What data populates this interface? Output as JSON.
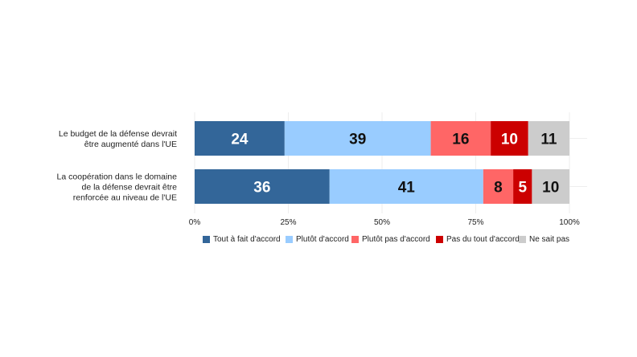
{
  "chart_data": {
    "type": "bar",
    "orientation": "horizontal",
    "stacked": true,
    "categories": [
      [
        "Le budget de la défense devrait",
        "être augmenté dans l'UE"
      ],
      [
        "La coopération dans le domaine",
        "de la défense devrait être",
        "renforcée au niveau de l'UE"
      ]
    ],
    "series": [
      {
        "name": "Tout à fait d'accord",
        "color": "#336699",
        "label_color": "#ffffff",
        "values": [
          24,
          36
        ]
      },
      {
        "name": "Plutôt d'accord",
        "color": "#99ccff",
        "label_color": "#111111",
        "values": [
          39,
          41
        ]
      },
      {
        "name": "Plutôt pas d'accord",
        "color": "#ff6666",
        "label_color": "#111111",
        "values": [
          16,
          8
        ]
      },
      {
        "name": "Pas du tout d'accord",
        "color": "#cc0000",
        "label_color": "#ffffff",
        "values": [
          10,
          5
        ]
      },
      {
        "name": "Ne sait pas",
        "color": "#cccccc",
        "label_color": "#111111",
        "values": [
          11,
          10
        ]
      }
    ],
    "xticks": [
      "0%",
      "25%",
      "50%",
      "75%",
      "100%"
    ],
    "xlim": [
      0,
      100
    ],
    "grid": true,
    "legend_position": "bottom"
  }
}
